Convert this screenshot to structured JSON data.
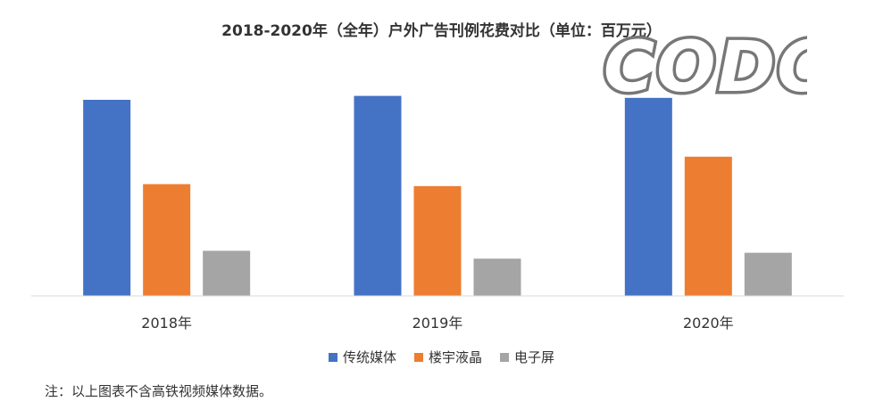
{
  "chart_data": {
    "type": "bar",
    "title": "2018-2020年（全年）户外广告刊例花费对比（单位：百万元）",
    "categories": [
      "2018年",
      "2019年",
      "2020年"
    ],
    "series": [
      {
        "name": "传统媒体",
        "color": "#4472C4",
        "values": [
          100,
          102,
          101
        ]
      },
      {
        "name": "楼宇液晶",
        "color": "#ED7D31",
        "values": [
          57,
          56,
          71
        ]
      },
      {
        "name": "电子屏",
        "color": "#A5A5A5",
        "values": [
          23,
          19,
          22
        ]
      }
    ],
    "xlabel": "",
    "ylabel": "",
    "ylim": [
      0,
      110
    ],
    "legend_position": "bottom",
    "grid": false
  },
  "watermark": {
    "text": "CODC"
  },
  "footnote": "注：以上图表不含高铁视频媒体数据。"
}
